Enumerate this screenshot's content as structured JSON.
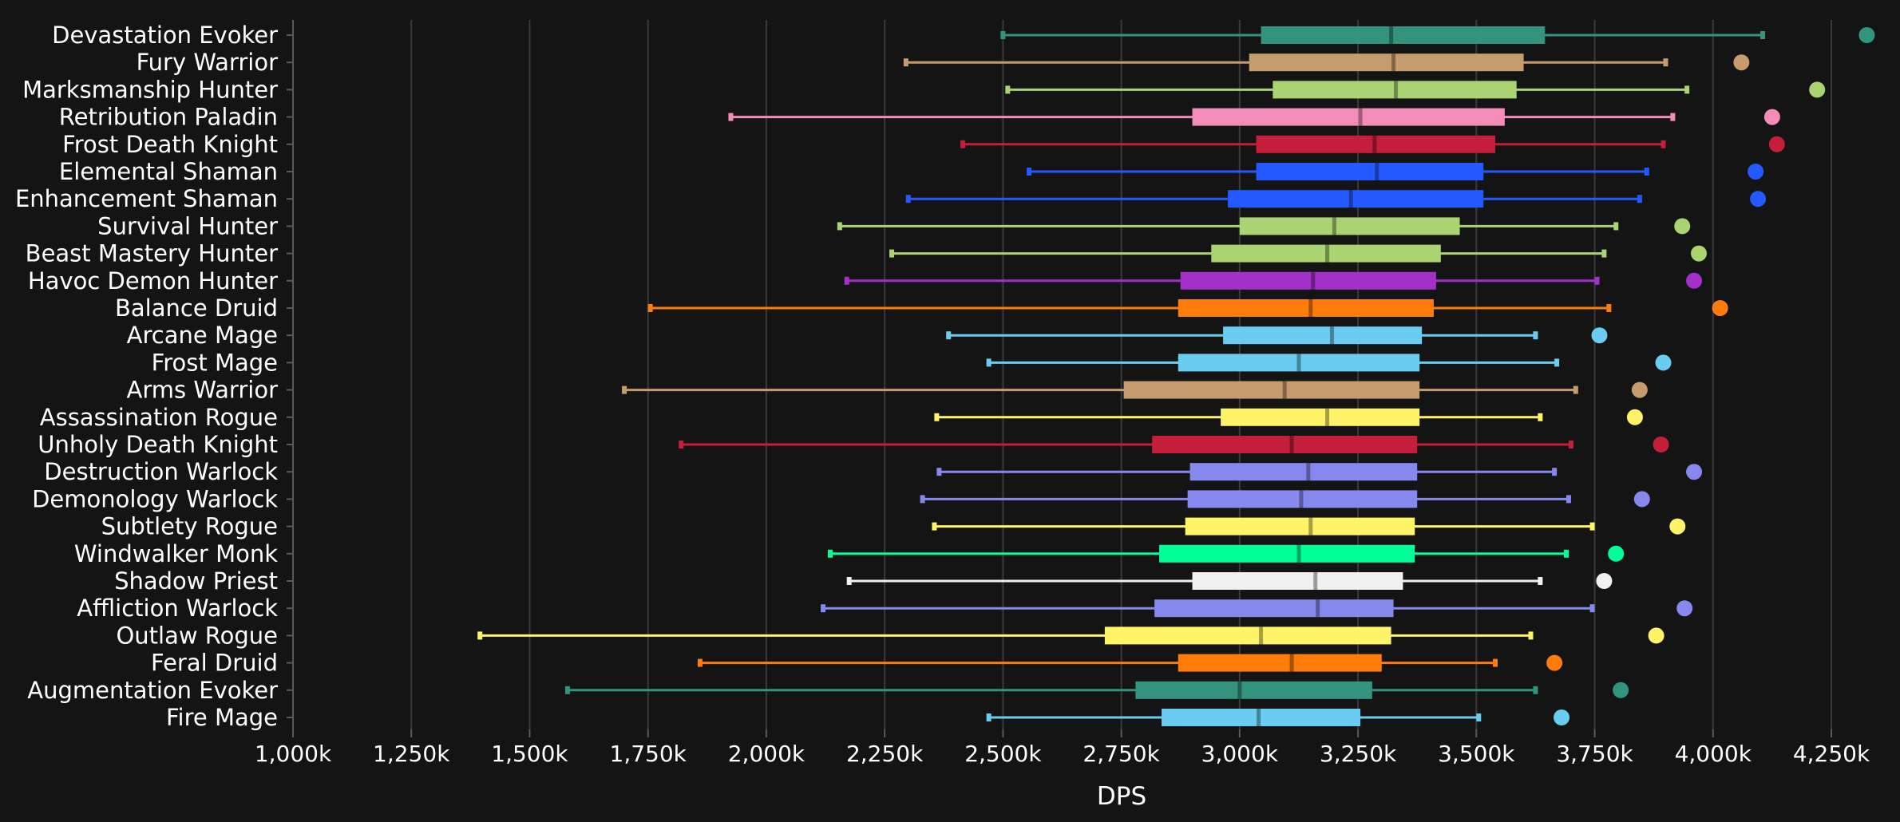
{
  "chart_data": {
    "type": "boxplot",
    "xlabel": "DPS",
    "xlim": [
      1000,
      4300
    ],
    "x_ticks": [
      {
        "value": 1000,
        "label": "1,000k"
      },
      {
        "value": 1250,
        "label": "1,250k"
      },
      {
        "value": 1500,
        "label": "1,500k"
      },
      {
        "value": 1750,
        "label": "1,750k"
      },
      {
        "value": 2000,
        "label": "2,000k"
      },
      {
        "value": 2250,
        "label": "2,250k"
      },
      {
        "value": 2500,
        "label": "2,500k"
      },
      {
        "value": 2750,
        "label": "2,750k"
      },
      {
        "value": 3000,
        "label": "3,000k"
      },
      {
        "value": 3250,
        "label": "3,250k"
      },
      {
        "value": 3500,
        "label": "3,500k"
      },
      {
        "value": 3750,
        "label": "3,750k"
      },
      {
        "value": 4000,
        "label": "4,000k"
      },
      {
        "value": 4250,
        "label": "4,250k"
      }
    ],
    "grid": true,
    "series": [
      {
        "name": "Devastation Evoker",
        "color": "#33937f",
        "min": 2500,
        "q1": 3045,
        "median": 3320,
        "q3": 3645,
        "max": 4105,
        "outlier": 4325
      },
      {
        "name": "Fury Warrior",
        "color": "#c69b6d",
        "min": 2295,
        "q1": 3020,
        "median": 3325,
        "q3": 3600,
        "max": 3900,
        "outlier": 4060
      },
      {
        "name": "Marksmanship Hunter",
        "color": "#aad372",
        "min": 2510,
        "q1": 3070,
        "median": 3330,
        "q3": 3585,
        "max": 3945,
        "outlier": 4220
      },
      {
        "name": "Retribution Paladin",
        "color": "#f48cba",
        "min": 1925,
        "q1": 2900,
        "median": 3255,
        "q3": 3560,
        "max": 3915,
        "outlier": 4125
      },
      {
        "name": "Frost Death Knight",
        "color": "#c41e3a",
        "min": 2415,
        "q1": 3035,
        "median": 3285,
        "q3": 3540,
        "max": 3895,
        "outlier": 4135
      },
      {
        "name": "Elemental Shaman",
        "color": "#2459ff",
        "min": 2555,
        "q1": 3035,
        "median": 3290,
        "q3": 3515,
        "max": 3860,
        "outlier": 4090
      },
      {
        "name": "Enhancement Shaman",
        "color": "#2459ff",
        "min": 2300,
        "q1": 2975,
        "median": 3235,
        "q3": 3515,
        "max": 3845,
        "outlier": 4095
      },
      {
        "name": "Survival Hunter",
        "color": "#aad372",
        "min": 2155,
        "q1": 3000,
        "median": 3200,
        "q3": 3465,
        "max": 3795,
        "outlier": 3935
      },
      {
        "name": "Beast Mastery Hunter",
        "color": "#aad372",
        "min": 2265,
        "q1": 2940,
        "median": 3185,
        "q3": 3425,
        "max": 3770,
        "outlier": 3970
      },
      {
        "name": "Havoc Demon Hunter",
        "color": "#a330c9",
        "min": 2170,
        "q1": 2875,
        "median": 3155,
        "q3": 3415,
        "max": 3755,
        "outlier": 3960
      },
      {
        "name": "Balance Druid",
        "color": "#ff7c0a",
        "min": 1755,
        "q1": 2870,
        "median": 3150,
        "q3": 3410,
        "max": 3780,
        "outlier": 4015
      },
      {
        "name": "Arcane Mage",
        "color": "#69ccf0",
        "min": 2385,
        "q1": 2965,
        "median": 3195,
        "q3": 3385,
        "max": 3625,
        "outlier": 3760
      },
      {
        "name": "Frost Mage",
        "color": "#69ccf0",
        "min": 2470,
        "q1": 2870,
        "median": 3125,
        "q3": 3380,
        "max": 3670,
        "outlier": 3895
      },
      {
        "name": "Arms Warrior",
        "color": "#c69b6d",
        "min": 1700,
        "q1": 2755,
        "median": 3095,
        "q3": 3380,
        "max": 3710,
        "outlier": 3845
      },
      {
        "name": "Assassination Rogue",
        "color": "#fff468",
        "min": 2360,
        "q1": 2960,
        "median": 3185,
        "q3": 3380,
        "max": 3635,
        "outlier": 3835
      },
      {
        "name": "Unholy Death Knight",
        "color": "#c41e3a",
        "min": 1820,
        "q1": 2815,
        "median": 3110,
        "q3": 3375,
        "max": 3700,
        "outlier": 3890
      },
      {
        "name": "Destruction Warlock",
        "color": "#8788ee",
        "min": 2365,
        "q1": 2895,
        "median": 3145,
        "q3": 3375,
        "max": 3665,
        "outlier": 3960
      },
      {
        "name": "Demonology Warlock",
        "color": "#8788ee",
        "min": 2330,
        "q1": 2890,
        "median": 3130,
        "q3": 3375,
        "max": 3695,
        "outlier": 3850
      },
      {
        "name": "Subtlety Rogue",
        "color": "#fff468",
        "min": 2355,
        "q1": 2885,
        "median": 3150,
        "q3": 3370,
        "max": 3745,
        "outlier": 3925
      },
      {
        "name": "Windwalker Monk",
        "color": "#00ff98",
        "min": 2135,
        "q1": 2830,
        "median": 3125,
        "q3": 3370,
        "max": 3690,
        "outlier": 3795
      },
      {
        "name": "Shadow Priest",
        "color": "#f0f0f0",
        "min": 2175,
        "q1": 2900,
        "median": 3160,
        "q3": 3345,
        "max": 3635,
        "outlier": 3770
      },
      {
        "name": "Affliction Warlock",
        "color": "#8788ee",
        "min": 2120,
        "q1": 2820,
        "median": 3165,
        "q3": 3325,
        "max": 3745,
        "outlier": 3940
      },
      {
        "name": "Outlaw Rogue",
        "color": "#fff468",
        "min": 1395,
        "q1": 2715,
        "median": 3045,
        "q3": 3320,
        "max": 3615,
        "outlier": 3880
      },
      {
        "name": "Feral Druid",
        "color": "#ff7c0a",
        "min": 1860,
        "q1": 2870,
        "median": 3110,
        "q3": 3300,
        "max": 3540,
        "outlier": 3665
      },
      {
        "name": "Augmentation Evoker",
        "color": "#33937f",
        "min": 1580,
        "q1": 2780,
        "median": 3000,
        "q3": 3280,
        "max": 3625,
        "outlier": 3805
      },
      {
        "name": "Fire Mage",
        "color": "#69ccf0",
        "min": 2470,
        "q1": 2835,
        "median": 3040,
        "q3": 3255,
        "max": 3505,
        "outlier": 3680
      }
    ]
  }
}
